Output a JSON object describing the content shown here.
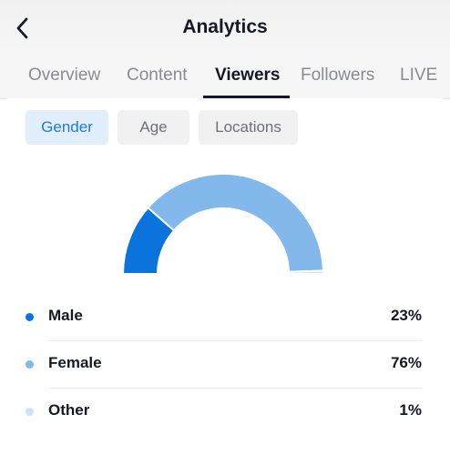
{
  "header": {
    "title": "Analytics",
    "back_icon": "chevron-left-icon"
  },
  "tabs": [
    {
      "label": "Overview",
      "active": false
    },
    {
      "label": "Content",
      "active": false
    },
    {
      "label": "Viewers",
      "active": true
    },
    {
      "label": "Followers",
      "active": false
    },
    {
      "label": "LIVE",
      "active": false
    }
  ],
  "filters": [
    {
      "label": "Gender",
      "active": true
    },
    {
      "label": "Age",
      "active": false
    },
    {
      "label": "Locations",
      "active": false
    }
  ],
  "colors": {
    "male": "#0a73dc",
    "female": "#82b8ec",
    "other": "#cfe3f8",
    "accent": "#1f7ad9"
  },
  "chart_data": {
    "type": "pie",
    "variant": "half-donut gauge",
    "categories": [
      "Male",
      "Female",
      "Other"
    ],
    "values": [
      23,
      76,
      1
    ],
    "unit": "%"
  },
  "legend": [
    {
      "label": "Male",
      "value": "23%"
    },
    {
      "label": "Female",
      "value": "76%"
    },
    {
      "label": "Other",
      "value": "1%"
    }
  ]
}
